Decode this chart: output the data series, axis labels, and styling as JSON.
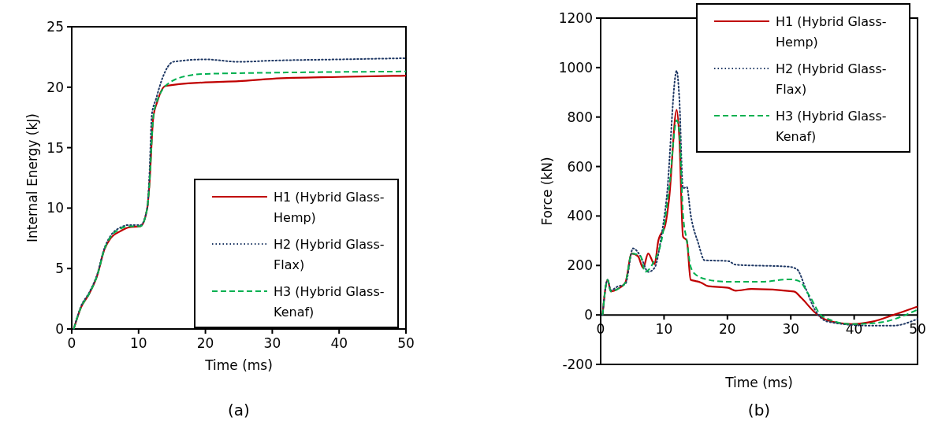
{
  "chart_data": [
    {
      "type": "line",
      "xlabel": "Time (ms)",
      "ylabel": "Internal Energy (kJ)",
      "xlim": [
        0,
        50
      ],
      "ylim": [
        0,
        25
      ],
      "xticks": [
        0,
        10,
        20,
        30,
        40,
        50
      ],
      "yticks": [
        0,
        5,
        10,
        15,
        20,
        25
      ],
      "grid": false,
      "legend": "bottom right",
      "annotations": [
        "(a)"
      ],
      "series": [
        {
          "name": "H1 (Hybrid Glass-Hemp)",
          "color": "#c00000",
          "line_style": "solid",
          "x": [
            0.3,
            1.4,
            2.6,
            3.8,
            4.9,
            5.8,
            7.3,
            8.5,
            10.3,
            11.3,
            11.6,
            12.2,
            12.8,
            14.0,
            20,
            25,
            30,
            40,
            50
          ],
          "values": [
            0,
            1.8,
            2.9,
            4.4,
            6.6,
            7.5,
            8.1,
            8.4,
            8.5,
            10,
            11.8,
            17.5,
            18.8,
            20.1,
            20.4,
            20.5,
            20.7,
            20.85,
            20.95
          ]
        },
        {
          "name": "H2 (Hybrid Glass-Flax)",
          "color": "#1f3864",
          "line_style": "dotted",
          "x": [
            0.3,
            1.4,
            2.6,
            3.8,
            4.9,
            5.8,
            7.3,
            8.5,
            10.3,
            11.3,
            11.6,
            12.0,
            12.6,
            13.6,
            15.2,
            20,
            25,
            30,
            40,
            50
          ],
          "values": [
            0,
            1.9,
            3.0,
            4.5,
            6.7,
            7.7,
            8.4,
            8.6,
            8.6,
            10,
            12.5,
            17.8,
            19.0,
            20.8,
            22.1,
            22.3,
            22.1,
            22.2,
            22.3,
            22.4
          ]
        },
        {
          "name": "H3 (Hybrid Glass-Kenaf)",
          "color": "#00b050",
          "line_style": "dashed",
          "x": [
            0.3,
            1.4,
            2.6,
            3.8,
            4.9,
            5.8,
            7.3,
            8.5,
            10.3,
            11.3,
            11.6,
            12.2,
            12.8,
            14.7,
            17.9,
            20,
            30,
            50
          ],
          "values": [
            0,
            1.8,
            2.9,
            4.4,
            6.6,
            7.6,
            8.3,
            8.5,
            8.5,
            10,
            11.8,
            17.5,
            18.9,
            20.4,
            21.0,
            21.1,
            21.2,
            21.3
          ]
        }
      ]
    },
    {
      "type": "line",
      "xlabel": "Time (ms)",
      "ylabel": "Force (kN)",
      "xlim": [
        0,
        50
      ],
      "ylim": [
        -200,
        1200
      ],
      "xticks": [
        0,
        10,
        20,
        30,
        40,
        50
      ],
      "yticks": [
        -200,
        0,
        200,
        400,
        600,
        800,
        1000,
        1200
      ],
      "grid": false,
      "legend": "top right",
      "annotations": [
        "(b)"
      ],
      "series": [
        {
          "name": "H1 (Hybrid Glass-Hemp)",
          "color": "#c00000",
          "line_style": "solid",
          "x": [
            0.3,
            1.1,
            1.6,
            2.7,
            3.9,
            4.9,
            5.9,
            6.7,
            7.5,
            8.5,
            9.1,
            10.2,
            10.8,
            12.0,
            12.4,
            13.0,
            13.6,
            14.2,
            15.0,
            15.8,
            17.0,
            20.1,
            21.3,
            23.8,
            30.5,
            31.7,
            33.8,
            35.8,
            39.6,
            42.9,
            46.2,
            50
          ],
          "values": [
            0,
            142,
            95,
            105,
            131,
            248,
            237,
            190,
            248,
            205,
            300,
            364,
            470,
            829,
            723,
            316,
            300,
            142,
            137,
            131,
            116,
            110,
            98,
            105,
            95,
            68,
            10,
            -22,
            -37,
            -27,
            0,
            34
          ]
        },
        {
          "name": "H2 (Hybrid Glass-Flax)",
          "color": "#1f3864",
          "line_style": "dotted",
          "x": [
            0.3,
            1.1,
            1.6,
            2.7,
            3.9,
            5.1,
            6.3,
            7.5,
            8.5,
            9.6,
            10.4,
            12.0,
            12.4,
            13.0,
            13.6,
            14.2,
            15.4,
            16.4,
            20.1,
            21.3,
            29.7,
            31.0,
            32.3,
            33.8,
            35.8,
            42.0,
            46.2,
            50
          ],
          "values": [
            0,
            142,
            100,
            115,
            125,
            269,
            237,
            174,
            190,
            322,
            470,
            987,
            882,
            512,
            517,
            406,
            290,
            221,
            218,
            203,
            195,
            184,
            110,
            21,
            -27,
            -43,
            -43,
            -16
          ]
        },
        {
          "name": "H3 (Hybrid Glass-Kenaf)",
          "color": "#00b050",
          "line_style": "dashed",
          "x": [
            0.3,
            1.1,
            1.6,
            2.7,
            3.9,
            4.9,
            6.3,
            7.0,
            8.4,
            9.6,
            10.8,
            12.0,
            12.4,
            13.0,
            13.6,
            14.2,
            15.0,
            17.0,
            20.1,
            25.5,
            29.7,
            31.3,
            32.9,
            35.0,
            39.6,
            43.7,
            50
          ],
          "values": [
            0,
            142,
            95,
            105,
            131,
            248,
            237,
            174,
            216,
            300,
            512,
            787,
            744,
            406,
            300,
            195,
            163,
            142,
            134,
            134,
            144,
            137,
            79,
            -6,
            -37,
            -32,
            21
          ]
        }
      ]
    }
  ]
}
